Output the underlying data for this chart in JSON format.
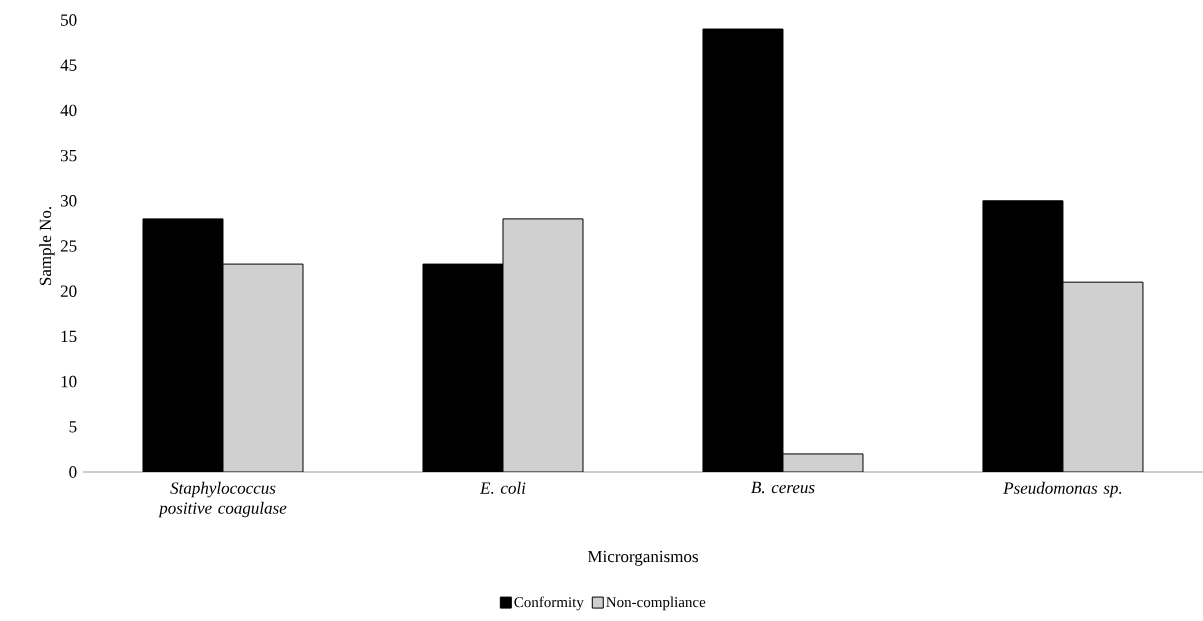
{
  "chart_data": {
    "type": "bar",
    "xlabel": "Microrganismos",
    "ylabel": "Sample No.",
    "categories": [
      "Staphylococcus positive coagulase",
      "E. coli",
      "B. cereus",
      "Pseudomonas sp."
    ],
    "series": [
      {
        "name": "Conformity",
        "color": "#000000",
        "values": [
          28,
          23,
          49,
          30
        ]
      },
      {
        "name": "Non-compliance",
        "color": "#d0d0d0",
        "values": [
          23,
          28,
          2,
          21
        ]
      }
    ],
    "ylim": [
      0,
      50
    ],
    "yticks": [
      0,
      5,
      10,
      15,
      20,
      25,
      30,
      35,
      40,
      45,
      50
    ],
    "grid": false,
    "legend": "bottom"
  }
}
